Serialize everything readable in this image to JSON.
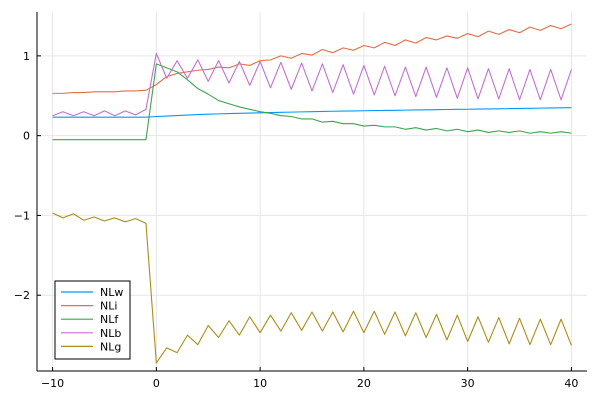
{
  "chart_data": {
    "type": "line",
    "title": "",
    "xlabel": "",
    "ylabel": "",
    "xlim": [
      -11.5,
      41.5
    ],
    "ylim": [
      -2.95,
      1.55
    ],
    "xticks": [
      -10,
      0,
      10,
      20,
      30,
      40
    ],
    "yticks": [
      -2,
      -1,
      0,
      1
    ],
    "xtick_labels": [
      "−10",
      "0",
      "10",
      "20",
      "30",
      "40"
    ],
    "ytick_labels": [
      "−2",
      "−1",
      "0",
      "1"
    ],
    "grid": true,
    "legend_position": "bottom-left",
    "x": [
      -10,
      -9,
      -8,
      -7,
      -6,
      -5,
      -4,
      -3,
      -2,
      -1,
      0,
      1,
      2,
      3,
      4,
      5,
      6,
      7,
      8,
      9,
      10,
      11,
      12,
      13,
      14,
      15,
      16,
      17,
      18,
      19,
      20,
      21,
      22,
      23,
      24,
      25,
      26,
      27,
      28,
      29,
      30,
      31,
      32,
      33,
      34,
      35,
      36,
      37,
      38,
      39,
      40
    ],
    "series": [
      {
        "name": "NLw",
        "color": "#009AFA",
        "values": [
          0.232,
          0.232,
          0.232,
          0.232,
          0.232,
          0.232,
          0.232,
          0.232,
          0.232,
          0.232,
          0.24,
          0.246,
          0.252,
          0.258,
          0.264,
          0.269,
          0.273,
          0.277,
          0.28,
          0.283,
          0.286,
          0.289,
          0.292,
          0.295,
          0.298,
          0.301,
          0.304,
          0.306,
          0.308,
          0.31,
          0.312,
          0.314,
          0.316,
          0.318,
          0.32,
          0.322,
          0.324,
          0.326,
          0.328,
          0.33,
          0.331,
          0.333,
          0.335,
          0.337,
          0.339,
          0.341,
          0.343,
          0.345,
          0.347,
          0.349,
          0.35
        ]
      },
      {
        "name": "NLi",
        "color": "#E36F47",
        "values": [
          0.53,
          0.53,
          0.54,
          0.54,
          0.55,
          0.55,
          0.55,
          0.56,
          0.56,
          0.57,
          0.64,
          0.74,
          0.78,
          0.8,
          0.82,
          0.83,
          0.86,
          0.85,
          0.9,
          0.88,
          0.94,
          0.95,
          1.0,
          0.97,
          1.03,
          1.01,
          1.08,
          1.04,
          1.1,
          1.07,
          1.13,
          1.1,
          1.17,
          1.13,
          1.2,
          1.16,
          1.23,
          1.2,
          1.25,
          1.22,
          1.28,
          1.24,
          1.31,
          1.27,
          1.33,
          1.29,
          1.36,
          1.32,
          1.38,
          1.34,
          1.4
        ]
      },
      {
        "name": "NLf",
        "color": "#3EA44E",
        "values": [
          -0.05,
          -0.05,
          -0.05,
          -0.05,
          -0.05,
          -0.05,
          -0.05,
          -0.05,
          -0.05,
          -0.05,
          0.9,
          0.85,
          0.8,
          0.7,
          0.59,
          0.52,
          0.44,
          0.4,
          0.36,
          0.33,
          0.3,
          0.28,
          0.25,
          0.24,
          0.21,
          0.21,
          0.17,
          0.18,
          0.15,
          0.15,
          0.12,
          0.13,
          0.11,
          0.11,
          0.08,
          0.1,
          0.07,
          0.09,
          0.06,
          0.08,
          0.05,
          0.07,
          0.04,
          0.06,
          0.04,
          0.06,
          0.03,
          0.05,
          0.03,
          0.05,
          0.03
        ]
      },
      {
        "name": "NLb",
        "color": "#C271D2",
        "values": [
          0.25,
          0.3,
          0.25,
          0.3,
          0.25,
          0.31,
          0.25,
          0.31,
          0.26,
          0.33,
          1.03,
          0.72,
          0.94,
          0.72,
          0.95,
          0.68,
          0.94,
          0.66,
          0.93,
          0.63,
          0.93,
          0.6,
          0.92,
          0.58,
          0.91,
          0.56,
          0.9,
          0.54,
          0.89,
          0.52,
          0.88,
          0.51,
          0.87,
          0.5,
          0.86,
          0.49,
          0.86,
          0.48,
          0.85,
          0.47,
          0.85,
          0.46,
          0.84,
          0.46,
          0.84,
          0.45,
          0.83,
          0.45,
          0.83,
          0.45,
          0.83
        ]
      },
      {
        "name": "NLg",
        "color": "#AC8D18",
        "values": [
          -0.97,
          -1.03,
          -0.98,
          -1.06,
          -1.02,
          -1.07,
          -1.03,
          -1.08,
          -1.04,
          -1.1,
          -2.85,
          -2.66,
          -2.72,
          -2.5,
          -2.62,
          -2.38,
          -2.53,
          -2.32,
          -2.5,
          -2.27,
          -2.47,
          -2.25,
          -2.45,
          -2.22,
          -2.44,
          -2.21,
          -2.45,
          -2.21,
          -2.46,
          -2.2,
          -2.47,
          -2.2,
          -2.49,
          -2.21,
          -2.51,
          -2.22,
          -2.53,
          -2.24,
          -2.56,
          -2.25,
          -2.58,
          -2.27,
          -2.59,
          -2.28,
          -2.61,
          -2.29,
          -2.62,
          -2.3,
          -2.62,
          -2.3,
          -2.63
        ]
      }
    ]
  }
}
